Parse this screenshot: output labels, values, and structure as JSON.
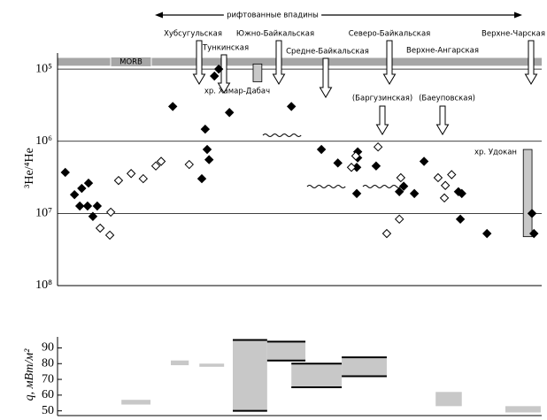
{
  "chart_data": [
    {
      "type": "scatter",
      "ylabel": "³He/⁴He",
      "ylim": [
        60000,
        100000000
      ],
      "log": true,
      "inverted": true,
      "xlim": [
        0,
        100
      ],
      "grid": true,
      "yticks": [
        {
          "value": 100000,
          "label": "10⁵"
        },
        {
          "value": 1000000,
          "label": "10⁶"
        },
        {
          "value": 10000000,
          "label": "10⁷"
        },
        {
          "value": 100000000,
          "label": "10⁸"
        }
      ],
      "span_label": "рифтованные впадины",
      "series": [
        {
          "marker": "filled",
          "color": "#000000",
          "x": [
            1.6,
            3.5,
            5,
            6.4,
            4.6,
            6.2,
            7.3,
            8.2,
            23.8,
            30.5,
            30.9,
            31.3,
            29.8,
            35.5,
            32.4,
            33.3,
            48.3,
            54.5,
            57.9,
            62,
            62,
            61.8,
            61.8,
            65.8,
            70.6,
            71.5,
            73.7,
            75.7,
            82.8,
            83.5,
            83.2,
            88.7,
            98,
            98.4
          ],
          "values": [
            2700000,
            5500000,
            4500000,
            3800000,
            7900000,
            7900000,
            11000000,
            7900000,
            330000,
            680000,
            1300000,
            1800000,
            3300000,
            400000,
            125000,
            100000,
            330000,
            1300000,
            2000000,
            1400000,
            1700000,
            2300000,
            5300000,
            2200000,
            5000000,
            4200000,
            5300000,
            1900000,
            5000000,
            5300000,
            12000000,
            19000000,
            10000000,
            19000000
          ]
        },
        {
          "marker": "open",
          "color": "#000000",
          "x": [
            8.8,
            10.8,
            11,
            15.2,
            12.6,
            17.7,
            20.3,
            21.4,
            27.2,
            66.2,
            61.6,
            60.7,
            70.9,
            70.6,
            68,
            78.6,
            80.1,
            79.9,
            81.4
          ],
          "values": [
            16000000,
            20000000,
            9600000,
            2800000,
            3500000,
            3300000,
            2200000,
            1900000,
            2100000,
            1200000,
            1600000,
            2300000,
            3200000,
            12000000,
            19000000,
            3200000,
            4100000,
            6100000,
            2900000
          ]
        }
      ],
      "bands": [
        {
          "label": "MORB",
          "range": [
            70000,
            90000
          ],
          "color": "#a6a6a6"
        }
      ],
      "ranges": [
        {
          "label": "хр. Хамар-Дабач",
          "x": [
            40.4,
            42.2
          ],
          "range": [
            85000,
            150000
          ],
          "color": "#c8c8c8"
        },
        {
          "label": "хр. Удокан",
          "x": [
            96.2,
            98
          ],
          "range": [
            1300000,
            21000000
          ],
          "color": "#c8c8c8"
        }
      ],
      "annotations": [
        "Хубсугульская",
        "Тункинская",
        "Южно-Байкальская",
        "Средне-Байкальская",
        "Северо-Байкальская",
        "Верхне-Ангарская",
        "(Баргузинская)",
        "(Баеуповская)",
        "Верхне-Чарская"
      ]
    },
    {
      "type": "range-bar",
      "ylabel": "q, мВт/м²",
      "ylim": [
        47,
        97
      ],
      "xlim": [
        0,
        100
      ],
      "yticks": [
        50,
        60,
        70,
        80,
        90
      ],
      "color": "#c8c8c8",
      "bars": [
        {
          "x": [
            13.2,
            19.2
          ],
          "low": 54,
          "high": 57,
          "edges": false
        },
        {
          "x": [
            23.4,
            27.1
          ],
          "low": 79,
          "high": 82,
          "edges": false
        },
        {
          "x": [
            29.3,
            34.4
          ],
          "low": 78,
          "high": 80,
          "edges": false
        },
        {
          "x": [
            36.2,
            43.3
          ],
          "low": 50,
          "high": 95,
          "edges": true
        },
        {
          "x": [
            43.3,
            51.2
          ],
          "low": 82,
          "high": 94,
          "edges": true
        },
        {
          "x": [
            48.3,
            58.7
          ],
          "low": 65,
          "high": 80,
          "edges": true
        },
        {
          "x": [
            58.7,
            68
          ],
          "low": 72,
          "high": 84,
          "edges": true
        },
        {
          "x": [
            78.1,
            83.5
          ],
          "low": 53,
          "high": 62,
          "edges": false
        },
        {
          "x": [
            92.5,
            99.8
          ],
          "low": 49,
          "high": 53,
          "edges": false
        }
      ]
    }
  ]
}
